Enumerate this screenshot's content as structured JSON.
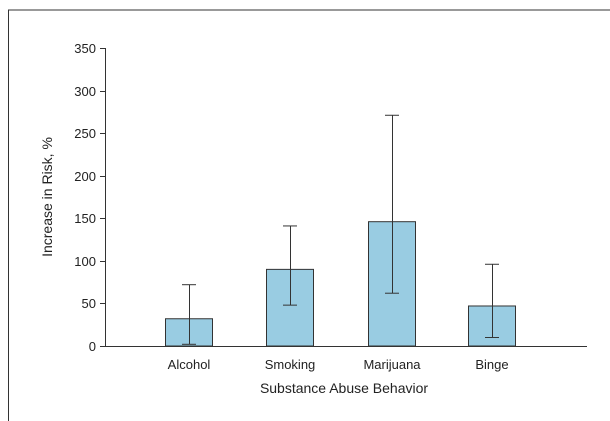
{
  "chart_data": {
    "type": "bar",
    "xlabel": "Substance Abuse Behavior",
    "ylabel": "Increase in Risk, %",
    "ylim": [
      0,
      350
    ],
    "yticks": [
      0,
      50,
      100,
      150,
      200,
      250,
      300,
      350
    ],
    "categories": [
      "Alcohol",
      "Smoking",
      "Marijuana",
      "Binge"
    ],
    "values": [
      32,
      90,
      146,
      47
    ],
    "error_low": [
      2,
      48,
      62,
      10
    ],
    "error_high": [
      72,
      141,
      271,
      96
    ],
    "bar_color": "#99cce2",
    "bar_edge_color": "#333333",
    "grid": false
  }
}
